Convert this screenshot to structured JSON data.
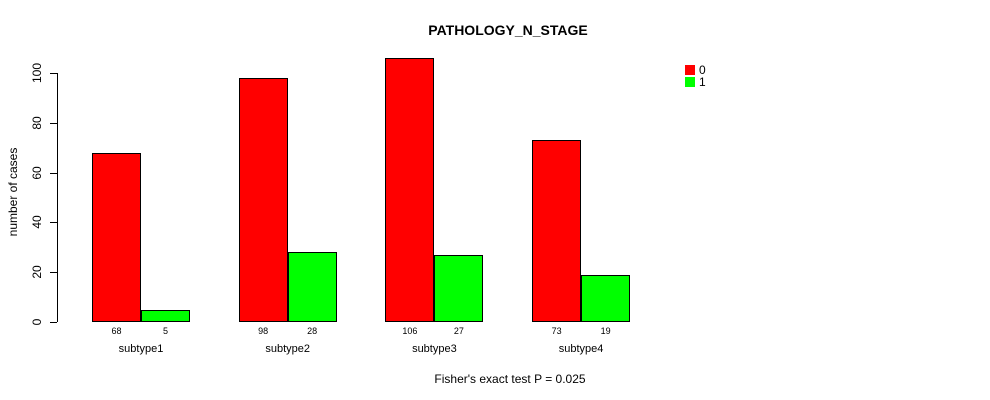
{
  "title": "PATHOLOGY_N_STAGE",
  "y_axis": {
    "label": "number of cases",
    "tick_labels": [
      "0",
      "20",
      "40",
      "60",
      "80",
      "100"
    ]
  },
  "legend": {
    "items": [
      {
        "label": "0",
        "color": "#FF0000"
      },
      {
        "label": "1",
        "color": "#00FF00"
      }
    ]
  },
  "footer": "Fisher's exact test P = 0.025",
  "chart_data": {
    "type": "bar",
    "title": "PATHOLOGY_N_STAGE",
    "categories": [
      "subtype1",
      "subtype2",
      "subtype3",
      "subtype4"
    ],
    "series": [
      {
        "name": "0",
        "color": "#FF0000",
        "values": [
          68,
          98,
          106,
          73
        ]
      },
      {
        "name": "1",
        "color": "#00FF00",
        "values": [
          5,
          28,
          27,
          19
        ]
      }
    ],
    "bar_value_labels": [
      [
        68,
        98,
        106,
        73
      ],
      [
        5,
        28,
        27,
        19
      ]
    ],
    "xlabel": "",
    "ylabel": "number of cases",
    "ylim": [
      0,
      110
    ],
    "yticks": [
      0,
      20,
      40,
      60,
      80,
      100
    ],
    "grid": false,
    "legend_position": "top-right",
    "annotation": "Fisher's exact test P = 0.025"
  }
}
